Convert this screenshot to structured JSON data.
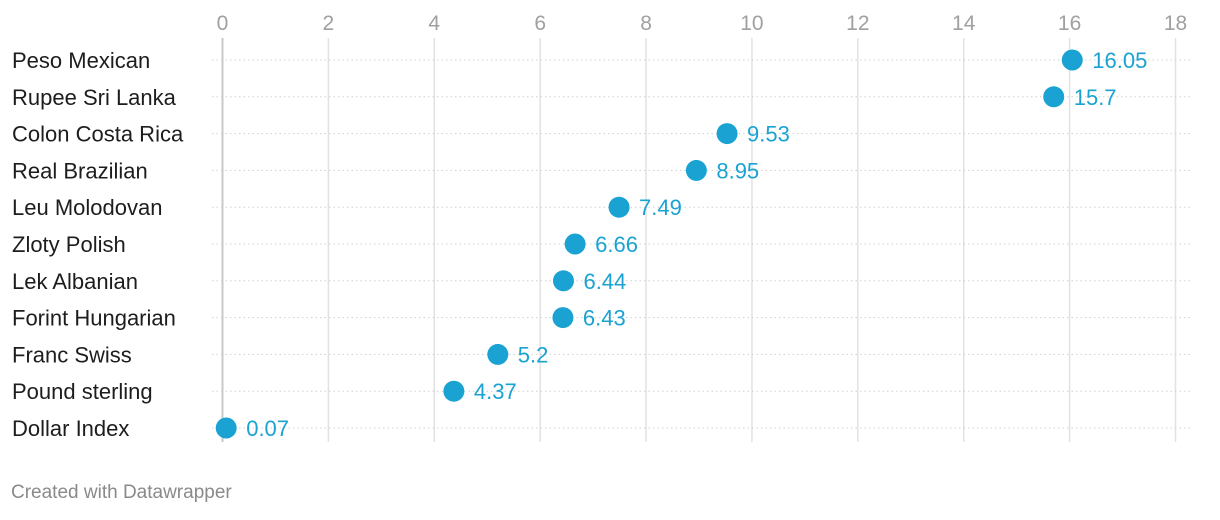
{
  "chart_data": {
    "type": "scatter",
    "categories": [
      "Peso Mexican",
      "Rupee Sri Lanka",
      "Colon Costa Rica",
      "Real Brazilian",
      "Leu Molodovan",
      "Zloty Polish",
      "Lek Albanian",
      "Forint Hungarian",
      "Franc Swiss",
      "Pound sterling",
      "Dollar Index"
    ],
    "values": [
      16.05,
      15.7,
      9.53,
      8.95,
      7.49,
      6.66,
      6.44,
      6.43,
      5.2,
      4.37,
      0.07
    ],
    "value_labels": [
      "16.05",
      "15.7",
      "9.53",
      "8.95",
      "7.49",
      "6.66",
      "6.44",
      "6.43",
      "5.2",
      "4.37",
      "0.07"
    ],
    "xticks": [
      0,
      2,
      4,
      6,
      8,
      10,
      12,
      14,
      16,
      18
    ],
    "xlim": [
      0,
      18
    ],
    "title": "",
    "xlabel": "",
    "ylabel": "",
    "grid": true,
    "axis_position": "top",
    "color": "#1aa3d2"
  },
  "footer": {
    "credit": "Created with Datawrapper"
  }
}
